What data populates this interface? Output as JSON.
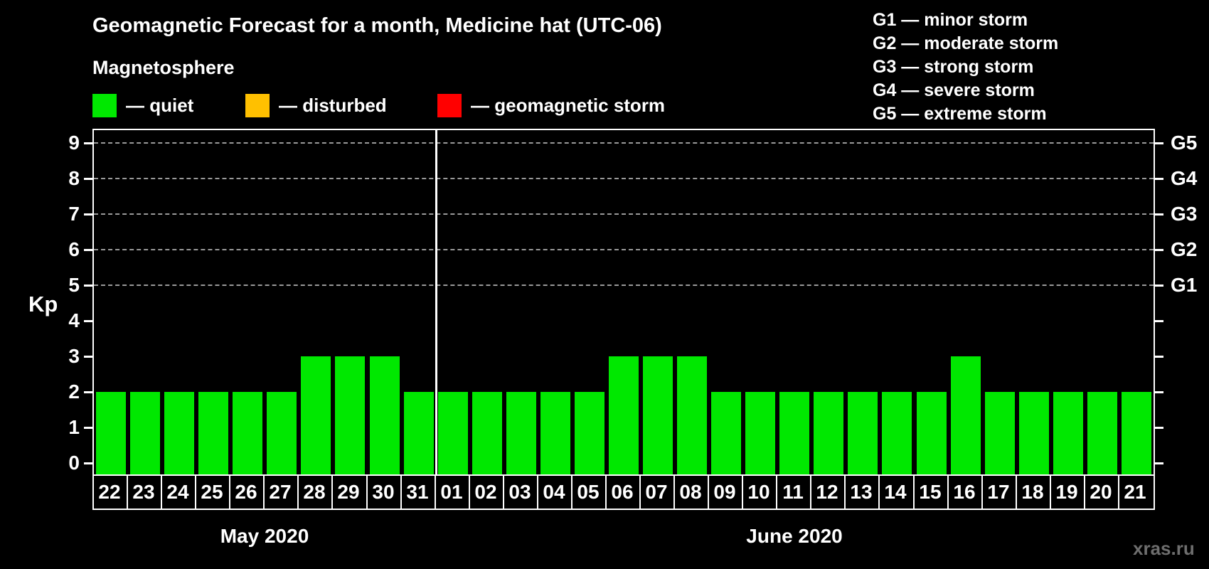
{
  "title": "Geomagnetic Forecast for a month, Medicine hat (UTC-06)",
  "subtitle": "Magnetosphere",
  "status_legend": {
    "items": [
      {
        "name": "quiet",
        "label": "— quiet",
        "color": "#00e800"
      },
      {
        "name": "disturbed",
        "label": "— disturbed",
        "color": "#ffc000"
      },
      {
        "name": "storm",
        "label": "— geomagnetic storm",
        "color": "#ff0000"
      }
    ]
  },
  "g_scale_legend": {
    "items": [
      "G1 — minor storm",
      "G2 — moderate storm",
      "G3 — strong storm",
      "G4 — severe storm",
      "G5 — extreme storm"
    ]
  },
  "watermark": "xras.ru",
  "chart_data": {
    "type": "bar",
    "ylabel": "Kp",
    "ylim": [
      0,
      9
    ],
    "yticks": [
      0,
      1,
      2,
      3,
      4,
      5,
      6,
      7,
      8,
      9
    ],
    "grid_kp_levels": [
      5,
      6,
      7,
      8,
      9
    ],
    "grid_style": "dashed",
    "right_axis": [
      {
        "label": "G1",
        "kp": 5
      },
      {
        "label": "G2",
        "kp": 6
      },
      {
        "label": "G3",
        "kp": 7
      },
      {
        "label": "G4",
        "kp": 8
      },
      {
        "label": "G5",
        "kp": 9
      }
    ],
    "bar_color": "#00e800",
    "months": [
      {
        "label": "May 2020",
        "days": [
          "22",
          "23",
          "24",
          "25",
          "26",
          "27",
          "28",
          "29",
          "30",
          "31"
        ],
        "values": [
          2,
          2,
          2,
          2,
          2,
          2,
          3,
          3,
          3,
          2
        ]
      },
      {
        "label": "June 2020",
        "days": [
          "01",
          "02",
          "03",
          "04",
          "05",
          "06",
          "07",
          "08",
          "09",
          "10",
          "11",
          "12",
          "13",
          "14",
          "15",
          "16",
          "17",
          "18",
          "19",
          "20",
          "21"
        ],
        "values": [
          2,
          2,
          2,
          2,
          2,
          3,
          3,
          3,
          2,
          2,
          2,
          2,
          2,
          2,
          2,
          3,
          2,
          2,
          2,
          2,
          2
        ]
      }
    ]
  }
}
